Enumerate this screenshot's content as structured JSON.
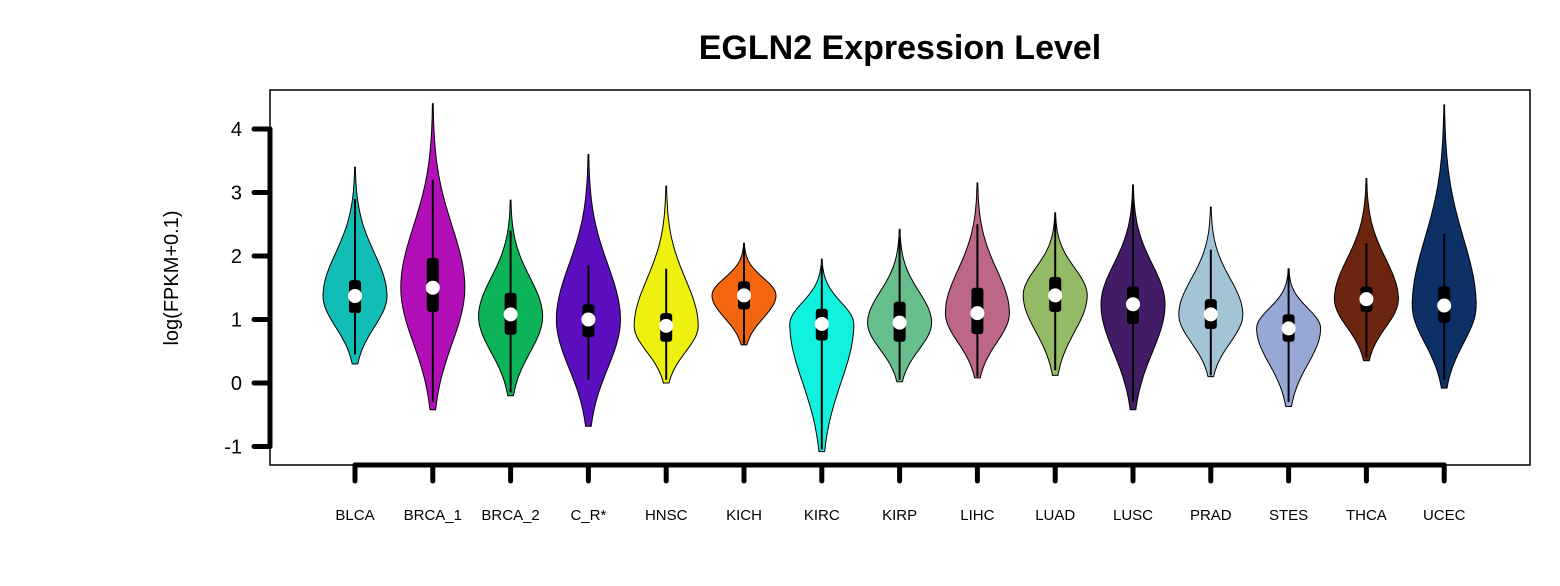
{
  "chart_data": {
    "type": "violin",
    "title": "EGLN2 Expression Level",
    "ylabel": "log(FPKM+0.1)",
    "xlabel": "",
    "ylim": [
      -1.2,
      4.5
    ],
    "yticks": [
      -1,
      0,
      1,
      2,
      3,
      4
    ],
    "grid": false,
    "legend": "none",
    "categories": [
      "BLCA",
      "BRCA_1",
      "BRCA_2",
      "C_R*",
      "HNSC",
      "KICH",
      "KIRC",
      "KIRP",
      "LIHC",
      "LUAD",
      "LUSC",
      "PRAD",
      "STES",
      "THCA",
      "UCEC"
    ],
    "colors": [
      "#12BDB5",
      "#B20FB8",
      "#0DB359",
      "#5C0FBF",
      "#EEF010",
      "#F2660F",
      "#10F2DE",
      "#66BF8C",
      "#BC6688",
      "#95BA66",
      "#421C66",
      "#A2C4D5",
      "#97A8D4",
      "#6C2610",
      "#0D3066"
    ],
    "violins": [
      {
        "min": 0.3,
        "max": 3.4,
        "q1": 1.1,
        "median": 1.37,
        "q3": 1.62,
        "whisker_low": 0.45,
        "whisker_high": 2.9,
        "mode": 1.37,
        "halfwidth": 0.42
      },
      {
        "min": -0.42,
        "max": 4.4,
        "q1": 1.12,
        "median": 1.5,
        "q3": 1.97,
        "whisker_low": -0.3,
        "whisker_high": 3.2,
        "mode": 1.5,
        "halfwidth": 0.42
      },
      {
        "min": -0.2,
        "max": 2.88,
        "q1": 0.76,
        "median": 1.08,
        "q3": 1.42,
        "whisker_low": -0.15,
        "whisker_high": 2.4,
        "mode": 1.05,
        "halfwidth": 0.42
      },
      {
        "min": -0.68,
        "max": 3.6,
        "q1": 0.72,
        "median": 1.0,
        "q3": 1.24,
        "whisker_low": 0.05,
        "whisker_high": 1.85,
        "mode": 1.0,
        "halfwidth": 0.42
      },
      {
        "min": 0.0,
        "max": 3.1,
        "q1": 0.65,
        "median": 0.9,
        "q3": 1.1,
        "whisker_low": 0.05,
        "whisker_high": 1.8,
        "mode": 0.9,
        "halfwidth": 0.42
      },
      {
        "min": 0.6,
        "max": 2.2,
        "q1": 1.16,
        "median": 1.38,
        "q3": 1.6,
        "whisker_low": 0.6,
        "whisker_high": 2.2,
        "mode": 1.38,
        "halfwidth": 0.42
      },
      {
        "min": -1.08,
        "max": 1.95,
        "q1": 0.67,
        "median": 0.93,
        "q3": 1.17,
        "whisker_low": -1.05,
        "whisker_high": 1.85,
        "mode": 0.93,
        "halfwidth": 0.42
      },
      {
        "min": 0.02,
        "max": 2.42,
        "q1": 0.65,
        "median": 0.95,
        "q3": 1.28,
        "whisker_low": 0.05,
        "whisker_high": 2.3,
        "mode": 0.95,
        "halfwidth": 0.42
      },
      {
        "min": 0.08,
        "max": 3.15,
        "q1": 0.77,
        "median": 1.1,
        "q3": 1.5,
        "whisker_low": 0.1,
        "whisker_high": 2.5,
        "mode": 1.1,
        "halfwidth": 0.42
      },
      {
        "min": 0.12,
        "max": 2.68,
        "q1": 1.12,
        "median": 1.38,
        "q3": 1.67,
        "whisker_low": 0.2,
        "whisker_high": 2.6,
        "mode": 1.38,
        "halfwidth": 0.42
      },
      {
        "min": -0.42,
        "max": 3.12,
        "q1": 0.93,
        "median": 1.24,
        "q3": 1.52,
        "whisker_low": -0.3,
        "whisker_high": 2.9,
        "mode": 1.24,
        "halfwidth": 0.42
      },
      {
        "min": 0.1,
        "max": 2.77,
        "q1": 0.85,
        "median": 1.08,
        "q3": 1.32,
        "whisker_low": 0.12,
        "whisker_high": 2.1,
        "mode": 1.08,
        "halfwidth": 0.42
      },
      {
        "min": -0.37,
        "max": 1.8,
        "q1": 0.65,
        "median": 0.86,
        "q3": 1.08,
        "whisker_low": -0.3,
        "whisker_high": 1.8,
        "mode": 0.86,
        "halfwidth": 0.42
      },
      {
        "min": 0.35,
        "max": 3.22,
        "q1": 1.12,
        "median": 1.32,
        "q3": 1.52,
        "whisker_low": 0.4,
        "whisker_high": 2.2,
        "mode": 1.32,
        "halfwidth": 0.42
      },
      {
        "min": -0.08,
        "max": 4.38,
        "q1": 0.95,
        "median": 1.22,
        "q3": 1.52,
        "whisker_low": 0.05,
        "whisker_high": 2.35,
        "mode": 1.22,
        "halfwidth": 0.42
      }
    ]
  }
}
